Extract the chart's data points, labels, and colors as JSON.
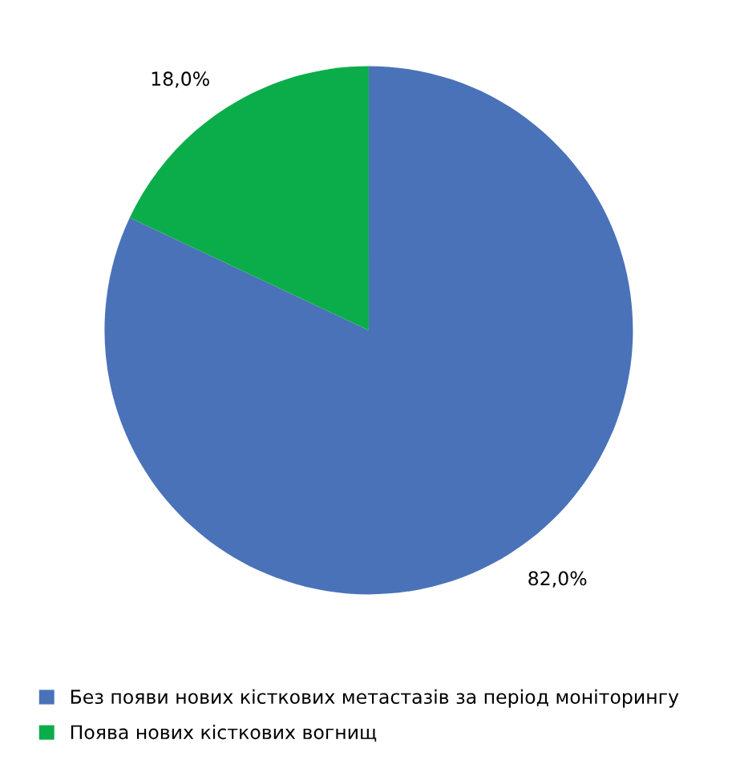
{
  "chart_data": {
    "type": "pie",
    "categories": [
      "Без появи нових кісткових метастазів за період моніторингу",
      "Поява нових кісткових вогнищ"
    ],
    "values": [
      82.0,
      18.0
    ],
    "colors": [
      "#4a72b8",
      "#0bad4a"
    ],
    "value_labels": [
      "82,0%",
      "18,0%"
    ],
    "legend": "bottom"
  }
}
